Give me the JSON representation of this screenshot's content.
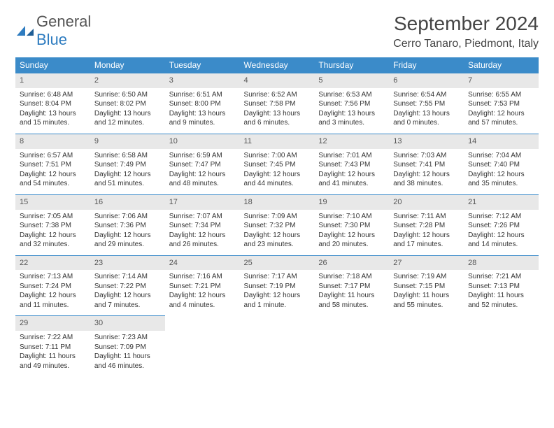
{
  "brand": {
    "general": "General",
    "blue": "Blue"
  },
  "title": "September 2024",
  "location": "Cerro Tanaro, Piedmont, Italy",
  "colors": {
    "header_bg": "#3b8bc9",
    "header_fg": "#ffffff",
    "daynum_bg": "#e8e8e8",
    "rule": "#3b8bc9",
    "text": "#333333",
    "brand_gray": "#555555",
    "brand_blue": "#2e7cc0",
    "page_bg": "#ffffff"
  },
  "weekdays": [
    "Sunday",
    "Monday",
    "Tuesday",
    "Wednesday",
    "Thursday",
    "Friday",
    "Saturday"
  ],
  "days": [
    {
      "n": 1,
      "sunrise": "6:48 AM",
      "sunset": "8:04 PM",
      "dl": "13 hours and 15 minutes."
    },
    {
      "n": 2,
      "sunrise": "6:50 AM",
      "sunset": "8:02 PM",
      "dl": "13 hours and 12 minutes."
    },
    {
      "n": 3,
      "sunrise": "6:51 AM",
      "sunset": "8:00 PM",
      "dl": "13 hours and 9 minutes."
    },
    {
      "n": 4,
      "sunrise": "6:52 AM",
      "sunset": "7:58 PM",
      "dl": "13 hours and 6 minutes."
    },
    {
      "n": 5,
      "sunrise": "6:53 AM",
      "sunset": "7:56 PM",
      "dl": "13 hours and 3 minutes."
    },
    {
      "n": 6,
      "sunrise": "6:54 AM",
      "sunset": "7:55 PM",
      "dl": "13 hours and 0 minutes."
    },
    {
      "n": 7,
      "sunrise": "6:55 AM",
      "sunset": "7:53 PM",
      "dl": "12 hours and 57 minutes."
    },
    {
      "n": 8,
      "sunrise": "6:57 AM",
      "sunset": "7:51 PM",
      "dl": "12 hours and 54 minutes."
    },
    {
      "n": 9,
      "sunrise": "6:58 AM",
      "sunset": "7:49 PM",
      "dl": "12 hours and 51 minutes."
    },
    {
      "n": 10,
      "sunrise": "6:59 AM",
      "sunset": "7:47 PM",
      "dl": "12 hours and 48 minutes."
    },
    {
      "n": 11,
      "sunrise": "7:00 AM",
      "sunset": "7:45 PM",
      "dl": "12 hours and 44 minutes."
    },
    {
      "n": 12,
      "sunrise": "7:01 AM",
      "sunset": "7:43 PM",
      "dl": "12 hours and 41 minutes."
    },
    {
      "n": 13,
      "sunrise": "7:03 AM",
      "sunset": "7:41 PM",
      "dl": "12 hours and 38 minutes."
    },
    {
      "n": 14,
      "sunrise": "7:04 AM",
      "sunset": "7:40 PM",
      "dl": "12 hours and 35 minutes."
    },
    {
      "n": 15,
      "sunrise": "7:05 AM",
      "sunset": "7:38 PM",
      "dl": "12 hours and 32 minutes."
    },
    {
      "n": 16,
      "sunrise": "7:06 AM",
      "sunset": "7:36 PM",
      "dl": "12 hours and 29 minutes."
    },
    {
      "n": 17,
      "sunrise": "7:07 AM",
      "sunset": "7:34 PM",
      "dl": "12 hours and 26 minutes."
    },
    {
      "n": 18,
      "sunrise": "7:09 AM",
      "sunset": "7:32 PM",
      "dl": "12 hours and 23 minutes."
    },
    {
      "n": 19,
      "sunrise": "7:10 AM",
      "sunset": "7:30 PM",
      "dl": "12 hours and 20 minutes."
    },
    {
      "n": 20,
      "sunrise": "7:11 AM",
      "sunset": "7:28 PM",
      "dl": "12 hours and 17 minutes."
    },
    {
      "n": 21,
      "sunrise": "7:12 AM",
      "sunset": "7:26 PM",
      "dl": "12 hours and 14 minutes."
    },
    {
      "n": 22,
      "sunrise": "7:13 AM",
      "sunset": "7:24 PM",
      "dl": "12 hours and 11 minutes."
    },
    {
      "n": 23,
      "sunrise": "7:14 AM",
      "sunset": "7:22 PM",
      "dl": "12 hours and 7 minutes."
    },
    {
      "n": 24,
      "sunrise": "7:16 AM",
      "sunset": "7:21 PM",
      "dl": "12 hours and 4 minutes."
    },
    {
      "n": 25,
      "sunrise": "7:17 AM",
      "sunset": "7:19 PM",
      "dl": "12 hours and 1 minute."
    },
    {
      "n": 26,
      "sunrise": "7:18 AM",
      "sunset": "7:17 PM",
      "dl": "11 hours and 58 minutes."
    },
    {
      "n": 27,
      "sunrise": "7:19 AM",
      "sunset": "7:15 PM",
      "dl": "11 hours and 55 minutes."
    },
    {
      "n": 28,
      "sunrise": "7:21 AM",
      "sunset": "7:13 PM",
      "dl": "11 hours and 52 minutes."
    },
    {
      "n": 29,
      "sunrise": "7:22 AM",
      "sunset": "7:11 PM",
      "dl": "11 hours and 49 minutes."
    },
    {
      "n": 30,
      "sunrise": "7:23 AM",
      "sunset": "7:09 PM",
      "dl": "11 hours and 46 minutes."
    }
  ],
  "labels": {
    "sunrise": "Sunrise: ",
    "sunset": "Sunset: ",
    "daylight": "Daylight: "
  },
  "grid": {
    "first_weekday_index": 0,
    "rows": 5,
    "cols": 7
  }
}
